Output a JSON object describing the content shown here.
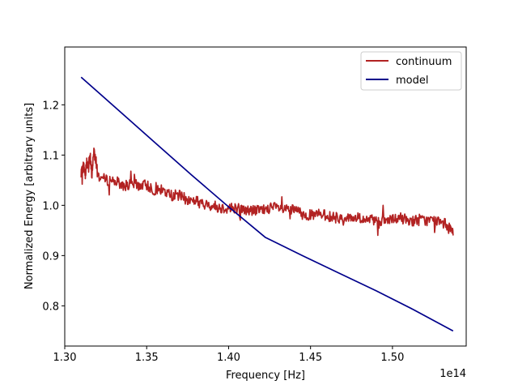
{
  "chart_data": {
    "type": "line",
    "xlabel": "Frequency [Hz]",
    "ylabel": "Normalized Energy [arbitrary units]",
    "x_offset_label": "1e14",
    "xlim": [
      1.3,
      1.545
    ],
    "ylim": [
      0.72,
      1.315
    ],
    "x_ticks": [
      1.3,
      1.35,
      1.4,
      1.45,
      1.5
    ],
    "x_tick_labels": [
      "1.30",
      "1.35",
      "1.40",
      "1.45",
      "1.50"
    ],
    "y_ticks": [
      0.8,
      0.9,
      1.0,
      1.1,
      1.2
    ],
    "y_tick_labels": [
      "0.8",
      "0.9",
      "1.0",
      "1.1",
      "1.2"
    ],
    "grid": false,
    "legend_position": "top-right",
    "series": [
      {
        "name": "continuum",
        "color": "#b22222",
        "style": "noisy",
        "x": [
          1.31,
          1.3115,
          1.3125,
          1.3135,
          1.3145,
          1.3155,
          1.3165,
          1.318,
          1.32,
          1.325,
          1.33,
          1.335,
          1.34,
          1.345,
          1.35,
          1.355,
          1.36,
          1.365,
          1.37,
          1.375,
          1.38,
          1.385,
          1.39,
          1.395,
          1.4,
          1.405,
          1.41,
          1.415,
          1.42,
          1.425,
          1.43,
          1.435,
          1.44,
          1.445,
          1.45,
          1.455,
          1.46,
          1.465,
          1.47,
          1.475,
          1.48,
          1.485,
          1.49,
          1.495,
          1.5,
          1.505,
          1.51,
          1.515,
          1.52,
          1.525,
          1.53,
          1.535,
          1.537
        ],
        "y": [
          1.06,
          1.08,
          1.06,
          1.09,
          1.07,
          1.1,
          1.06,
          1.12,
          1.06,
          1.05,
          1.05,
          1.04,
          1.04,
          1.04,
          1.04,
          1.03,
          1.03,
          1.02,
          1.02,
          1.01,
          1.01,
          1.0,
          1.0,
          0.995,
          0.995,
          0.995,
          0.99,
          0.99,
          0.99,
          0.995,
          0.995,
          0.99,
          0.99,
          0.985,
          0.98,
          0.98,
          0.98,
          0.975,
          0.975,
          0.975,
          0.975,
          0.97,
          0.97,
          0.97,
          0.97,
          0.975,
          0.97,
          0.97,
          0.97,
          0.97,
          0.965,
          0.96,
          0.94
        ]
      },
      {
        "name": "model",
        "color": "#00008b",
        "style": "smooth",
        "x": [
          1.31,
          1.3325,
          1.355,
          1.3775,
          1.4,
          1.4225,
          1.445,
          1.4675,
          1.49,
          1.5125,
          1.537
        ],
        "y": [
          1.255,
          1.19,
          1.125,
          1.06,
          0.997,
          0.936,
          0.9,
          0.865,
          0.83,
          0.793,
          0.75
        ]
      }
    ]
  }
}
